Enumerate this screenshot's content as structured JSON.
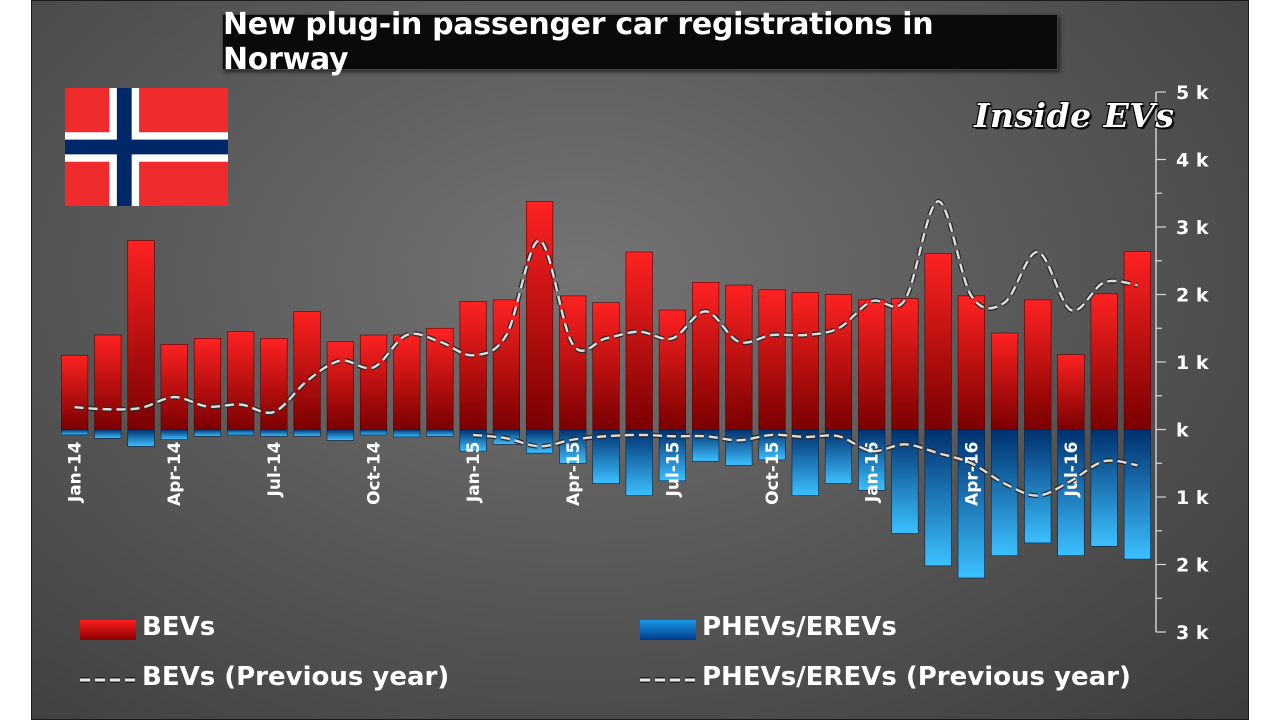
{
  "title": "New plug-in passenger car registrations in Norway",
  "brand": "Inside EVs",
  "colors": {
    "bev": "#e00000",
    "phev": "#1a8fe0",
    "dashed": "#dddddd",
    "background": "#5a5a5a"
  },
  "chart_data": {
    "type": "bar",
    "categories": [
      "Jan-14",
      "Feb-14",
      "Mar-14",
      "Apr-14",
      "May-14",
      "Jun-14",
      "Jul-14",
      "Aug-14",
      "Sep-14",
      "Oct-14",
      "Nov-14",
      "Dec-14",
      "Jan-15",
      "Feb-15",
      "Mar-15",
      "Apr-15",
      "May-15",
      "Jun-15",
      "Jul-15",
      "Aug-15",
      "Sep-15",
      "Oct-15",
      "Nov-15",
      "Dec-15",
      "Jan-16",
      "Feb-16",
      "Mar-16",
      "Apr-16",
      "May-16",
      "Jun-16",
      "Jul-16",
      "Aug-16",
      "Sep-16"
    ],
    "tick_labels": [
      "Jan-14",
      "Apr-14",
      "Jul-14",
      "Oct-14",
      "Jan-15",
      "Apr-15",
      "Jul-15",
      "Oct-15",
      "Jan-16",
      "Apr-16",
      "Jul-16"
    ],
    "series": [
      {
        "name": "BEVs",
        "values": [
          1100,
          1400,
          2800,
          1260,
          1350,
          1450,
          1350,
          1750,
          1300,
          1400,
          1400,
          1500,
          1900,
          1920,
          3380,
          1980,
          1880,
          2630,
          1770,
          2180,
          2140,
          2070,
          2030,
          2000,
          1920,
          1940,
          2610,
          1980,
          1430,
          1920,
          1110,
          2010,
          2640
        ]
      },
      {
        "name": "PHEVs/EREVs",
        "values": [
          -80,
          -130,
          -250,
          -150,
          -100,
          -80,
          -100,
          -100,
          -160,
          -80,
          -110,
          -100,
          -320,
          -220,
          -350,
          -500,
          -800,
          -980,
          -760,
          -470,
          -530,
          -450,
          -980,
          -800,
          -900,
          -1540,
          -2020,
          -2200,
          -1870,
          -1680,
          -1870,
          -1730,
          -1920
        ]
      },
      {
        "name": "BEVs (Previous year)",
        "values": [
          330,
          300,
          320,
          480,
          340,
          370,
          260,
          720,
          1020,
          920,
          1400,
          1300,
          1100,
          1400,
          2800,
          1260,
          1350,
          1450,
          1350,
          1750,
          1300,
          1400,
          1400,
          1500,
          1900,
          1920,
          3380,
          1980,
          1880,
          2630,
          1770,
          2180,
          2140
        ]
      },
      {
        "name": "PHEVs/EREVs (Previous year)",
        "values": [
          null,
          null,
          null,
          null,
          null,
          null,
          null,
          null,
          null,
          null,
          null,
          null,
          -80,
          -130,
          -250,
          -150,
          -100,
          -80,
          -100,
          -100,
          -160,
          -80,
          -110,
          -100,
          -320,
          -220,
          -350,
          -500,
          -800,
          -980,
          -760,
          -470,
          -530
        ]
      }
    ],
    "y_ticks": [
      {
        "v": 5000,
        "label": "5 k"
      },
      {
        "v": 4000,
        "label": "4 k"
      },
      {
        "v": 3000,
        "label": "3 k"
      },
      {
        "v": 2000,
        "label": "2 k"
      },
      {
        "v": 1000,
        "label": "1 k"
      },
      {
        "v": 0,
        "label": "k"
      },
      {
        "v": -1000,
        "label": "1 k"
      },
      {
        "v": -2000,
        "label": "2 k"
      },
      {
        "v": -3000,
        "label": "3 k"
      }
    ],
    "ylim": [
      -3000,
      5000
    ],
    "legend": "bottom",
    "grid": false
  },
  "legend": {
    "bev": "BEVs",
    "phev": "PHEVs/EREVs",
    "bev_prev": "BEVs (Previous year)",
    "phev_prev": "PHEVs/EREVs (Previous year)"
  }
}
